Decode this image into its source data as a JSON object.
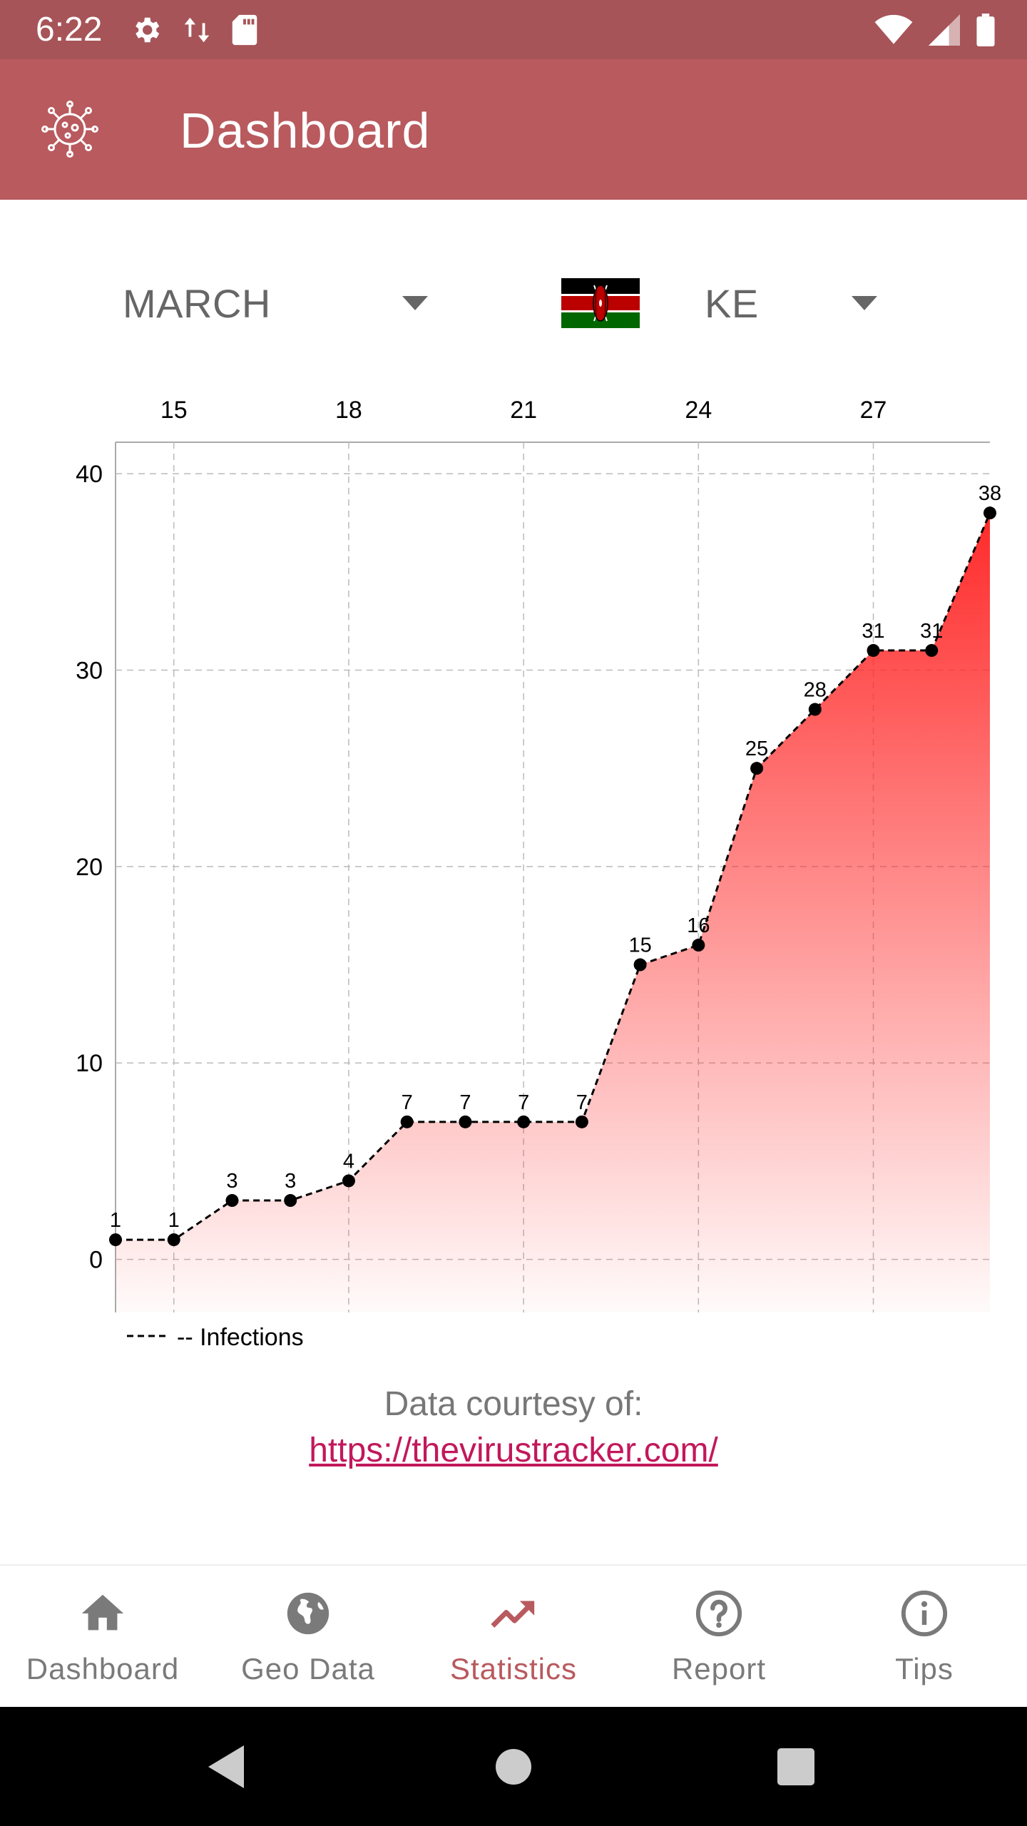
{
  "status_bar": {
    "time": "6:22",
    "left_icons": [
      "gear-icon",
      "data-arrows-icon",
      "sd-card-icon"
    ],
    "right_icons": [
      "wifi-icon",
      "signal-icon",
      "battery-icon"
    ]
  },
  "app_bar": {
    "title": "Dashboard",
    "logo_icon": "virus-icon",
    "color": "#b85a5e"
  },
  "selectors": {
    "month": {
      "value": "MARCH"
    },
    "country": {
      "value": "KE",
      "flag_icon": "kenya-flag-icon"
    }
  },
  "chart_data": {
    "type": "area",
    "x_axis_position": "top",
    "x_ticks": [
      15,
      18,
      21,
      24,
      27
    ],
    "y_ticks": [
      0,
      10,
      20,
      30,
      40
    ],
    "x": [
      14,
      15,
      16,
      17,
      18,
      19,
      20,
      21,
      22,
      23,
      24,
      25,
      26,
      27,
      28,
      29
    ],
    "series": [
      {
        "name": "-- Infections",
        "values": [
          1,
          1,
          3,
          3,
          4,
          7,
          7,
          7,
          7,
          15,
          16,
          25,
          28,
          31,
          31,
          38
        ]
      }
    ],
    "xlim": [
      14,
      29
    ],
    "ylim": [
      -2.7,
      41.6
    ],
    "grid": true,
    "legend": "bottom-left",
    "fill_color": "#ff2a2a",
    "line_style": "dashed",
    "point_color": "#000000"
  },
  "courtesy": {
    "text": "Data courtesy of:",
    "link": "https://thevirustracker.com/"
  },
  "bottom_nav": {
    "active_color": "#b85a5e",
    "items": [
      {
        "label": "Dashboard",
        "icon": "home-icon"
      },
      {
        "label": "Geo Data",
        "icon": "globe-icon"
      },
      {
        "label": "Statistics",
        "icon": "trending-up-icon",
        "active": true
      },
      {
        "label": "Report",
        "icon": "help-circle-icon"
      },
      {
        "label": "Tips",
        "icon": "info-icon"
      }
    ]
  },
  "system_nav": {
    "buttons": [
      "back-icon",
      "home-circle-icon",
      "recents-icon"
    ]
  }
}
